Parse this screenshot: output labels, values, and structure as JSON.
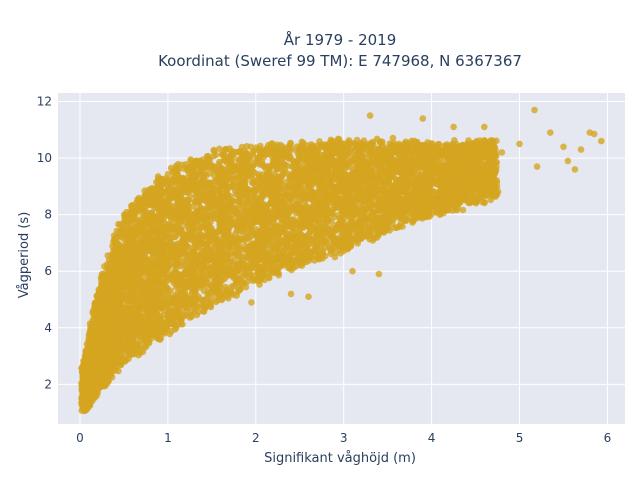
{
  "chart_data": {
    "type": "scatter",
    "title_lines": [
      "År 1979 - 2019",
      "Koordinat (Sweref 99 TM): E 747968, N 6367367"
    ],
    "xlabel": "Signifikant våghöjd (m)",
    "ylabel": "Vågperiod (s)",
    "xlim": [
      -0.25,
      6.2
    ],
    "ylim": [
      0.6,
      12.3
    ],
    "xticks": [
      0,
      1,
      2,
      3,
      4,
      5,
      6
    ],
    "yticks": [
      2,
      4,
      6,
      8,
      10,
      12
    ],
    "grid": true,
    "legend": "none",
    "marker_color": "#d4a520",
    "plot_bg": "#e5e8f0",
    "grid_color": "#ffffff",
    "point_count": 8000,
    "period_curve": {
      "hs": [
        0.05,
        0.2,
        0.5,
        1.0,
        1.5,
        2.0,
        2.5,
        3.0,
        3.5,
        4.0,
        4.5,
        5.0,
        5.5,
        5.9
      ],
      "upper": [
        2.6,
        5.2,
        8.0,
        9.6,
        10.2,
        10.4,
        10.5,
        10.6,
        10.6,
        10.5,
        10.6,
        10.5,
        10.4,
        10.3
      ],
      "lower": [
        1.1,
        1.7,
        2.8,
        3.8,
        4.8,
        5.6,
        6.2,
        6.8,
        7.4,
        8.0,
        8.4,
        8.8,
        9.2,
        9.6
      ]
    },
    "outliers": [
      {
        "x": 4.6,
        "y": 11.1
      },
      {
        "x": 4.8,
        "y": 10.2
      },
      {
        "x": 5.0,
        "y": 10.5
      },
      {
        "x": 5.17,
        "y": 11.7
      },
      {
        "x": 5.2,
        "y": 9.7
      },
      {
        "x": 5.35,
        "y": 10.9
      },
      {
        "x": 5.5,
        "y": 10.4
      },
      {
        "x": 5.55,
        "y": 9.9
      },
      {
        "x": 5.63,
        "y": 9.6
      },
      {
        "x": 5.7,
        "y": 10.3
      },
      {
        "x": 5.8,
        "y": 10.9
      },
      {
        "x": 5.85,
        "y": 10.85
      },
      {
        "x": 5.93,
        "y": 10.6
      },
      {
        "x": 4.25,
        "y": 11.1
      },
      {
        "x": 3.9,
        "y": 11.4
      },
      {
        "x": 4.0,
        "y": 9.2
      },
      {
        "x": 4.4,
        "y": 9.4
      },
      {
        "x": 2.4,
        "y": 5.2
      },
      {
        "x": 2.6,
        "y": 5.1
      },
      {
        "x": 3.1,
        "y": 6.0
      },
      {
        "x": 3.4,
        "y": 5.9
      },
      {
        "x": 2.9,
        "y": 6.5
      },
      {
        "x": 3.3,
        "y": 11.5
      },
      {
        "x": 1.95,
        "y": 4.9
      }
    ]
  }
}
